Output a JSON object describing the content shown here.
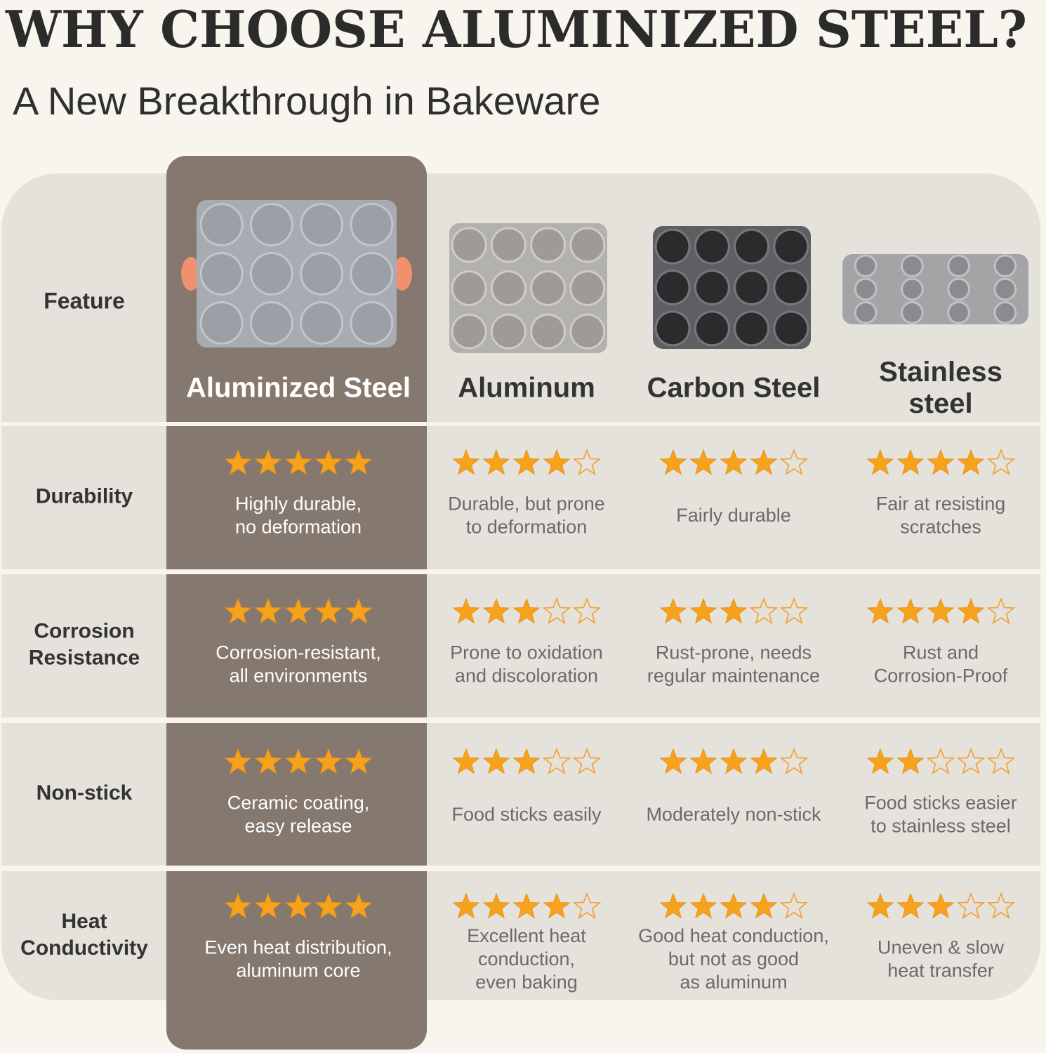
{
  "header": {
    "title": "WHY CHOOSE ALUMINIZED STEEL?",
    "subtitle": "A New Breakthrough in Bakeware"
  },
  "table": {
    "max_rating": 5,
    "columns": [
      [
        "Feature"
      ],
      [
        "Aluminized Steel"
      ],
      [
        "Aluminum"
      ],
      [
        "Carbon Steel"
      ],
      [
        "Stainless",
        "steel"
      ]
    ],
    "rows": [
      {
        "feature": [
          "Durability"
        ],
        "cells": [
          {
            "rating": 5,
            "text": [
              "Highly durable,",
              "no deformation"
            ]
          },
          {
            "rating": 4,
            "text": [
              "Durable, but prone",
              "to deformation"
            ]
          },
          {
            "rating": 4,
            "text": [
              "Fairly durable"
            ]
          },
          {
            "rating": 4,
            "text": [
              "Fair at resisting",
              "scratches"
            ]
          }
        ]
      },
      {
        "feature": [
          "Corrosion",
          "Resistance"
        ],
        "cells": [
          {
            "rating": 5,
            "text": [
              "Corrosion-resistant,",
              "all environments"
            ]
          },
          {
            "rating": 3,
            "text": [
              "Prone to oxidation",
              "and discoloration"
            ]
          },
          {
            "rating": 3,
            "text": [
              "Rust-prone, needs",
              "regular maintenance"
            ]
          },
          {
            "rating": 4,
            "text": [
              "Rust and",
              "Corrosion-Proof"
            ]
          }
        ]
      },
      {
        "feature": [
          "Non-stick"
        ],
        "cells": [
          {
            "rating": 5,
            "text": [
              "Ceramic coating,",
              "easy release"
            ]
          },
          {
            "rating": 3,
            "text": [
              "Food sticks easily"
            ]
          },
          {
            "rating": 4,
            "text": [
              "Moderately non-stick"
            ]
          },
          {
            "rating": 2,
            "text": [
              "Food sticks easier",
              "to stainless steel"
            ]
          }
        ]
      },
      {
        "feature": [
          "Heat",
          "Conductivity"
        ],
        "cells": [
          {
            "rating": 5,
            "text": [
              "Even heat distribution,",
              "aluminum core"
            ]
          },
          {
            "rating": 4,
            "text": [
              "Excellent heat",
              "conduction,",
              "even baking"
            ]
          },
          {
            "rating": 4,
            "text": [
              "Good heat conduction,",
              "but not as good",
              "as aluminum"
            ]
          },
          {
            "rating": 3,
            "text": [
              "Uneven & slow",
              "heat transfer"
            ]
          }
        ]
      }
    ]
  }
}
